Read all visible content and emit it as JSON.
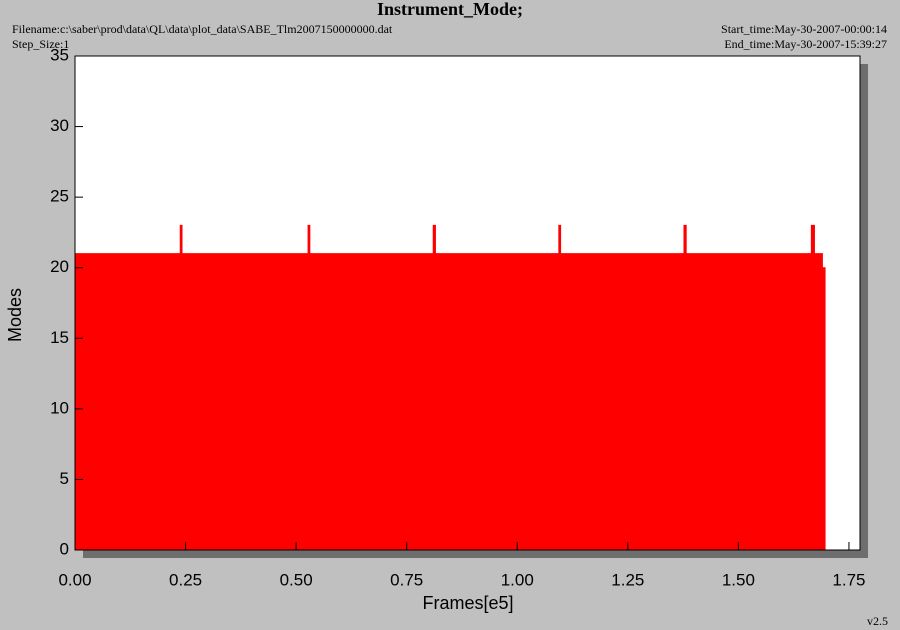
{
  "chart_data": {
    "type": "area",
    "title": "Instrument_Mode;",
    "filename": "Filename:c:\\saber\\prod\\data\\QL\\data\\plot_data\\SABE_Tlm2007150000000.dat",
    "step_size": "Step_Size:1",
    "start_time": "Start_time:May-30-2007-00:00:14",
    "end_time": "End_time:May-30-2007-15:39:27",
    "version": "v2.5",
    "x_label": "Frames[e5]",
    "y_label": "Modes",
    "color": "#ff0000",
    "x": [
      0,
      0,
      0.238,
      0.238,
      0.242,
      0.242,
      0.527,
      0.527,
      0.531,
      0.531,
      0.81,
      0.81,
      0.815,
      0.815,
      1.094,
      1.094,
      1.098,
      1.098,
      1.377,
      1.377,
      1.382,
      1.382,
      1.665,
      1.665,
      1.672,
      1.672,
      1.69,
      1.69,
      1.696,
      1.696
    ],
    "values": [
      0,
      21,
      21,
      23,
      23,
      21,
      21,
      23,
      23,
      21,
      21,
      23,
      23,
      21,
      21,
      23,
      23,
      21,
      21,
      23,
      23,
      21,
      21,
      23,
      23,
      21,
      21,
      20,
      20,
      0
    ],
    "xlim": [
      0,
      1.775
    ],
    "ylim": [
      0,
      35
    ],
    "xticks": [
      {
        "value": 0,
        "label": "0.00"
      },
      {
        "value": 0.25,
        "label": "0.25"
      },
      {
        "value": 0.5,
        "label": "0.50"
      },
      {
        "value": 0.75,
        "label": "0.75"
      },
      {
        "value": 1,
        "label": "1.00"
      },
      {
        "value": 1.25,
        "label": "1.25"
      },
      {
        "value": 1.5,
        "label": "1.50"
      },
      {
        "value": 1.75,
        "label": "1.75"
      }
    ],
    "yticks": [
      0,
      5,
      10,
      15,
      20,
      25,
      30,
      35
    ]
  }
}
